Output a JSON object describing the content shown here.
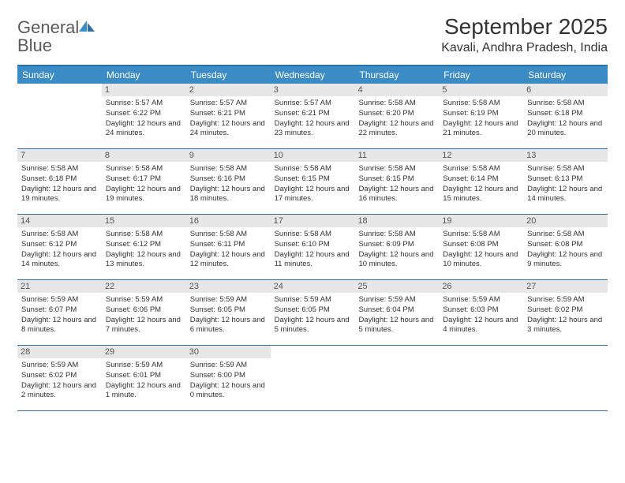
{
  "logo": {
    "general": "General",
    "blue": "Blue"
  },
  "title": "September 2025",
  "location": "Kavali, Andhra Pradesh, India",
  "colors": {
    "header_bg": "#3b8bc4",
    "header_text": "#ffffff",
    "border": "#2a6fa8",
    "daynum_bg": "#e7e7e7",
    "text": "#333333"
  },
  "daysOfWeek": [
    "Sunday",
    "Monday",
    "Tuesday",
    "Wednesday",
    "Thursday",
    "Friday",
    "Saturday"
  ],
  "weeks": [
    [
      null,
      {
        "n": "1",
        "sr": "5:57 AM",
        "ss": "6:22 PM",
        "dl": "12 hours and 24 minutes."
      },
      {
        "n": "2",
        "sr": "5:57 AM",
        "ss": "6:21 PM",
        "dl": "12 hours and 24 minutes."
      },
      {
        "n": "3",
        "sr": "5:57 AM",
        "ss": "6:21 PM",
        "dl": "12 hours and 23 minutes."
      },
      {
        "n": "4",
        "sr": "5:58 AM",
        "ss": "6:20 PM",
        "dl": "12 hours and 22 minutes."
      },
      {
        "n": "5",
        "sr": "5:58 AM",
        "ss": "6:19 PM",
        "dl": "12 hours and 21 minutes."
      },
      {
        "n": "6",
        "sr": "5:58 AM",
        "ss": "6:18 PM",
        "dl": "12 hours and 20 minutes."
      }
    ],
    [
      {
        "n": "7",
        "sr": "5:58 AM",
        "ss": "6:18 PM",
        "dl": "12 hours and 19 minutes."
      },
      {
        "n": "8",
        "sr": "5:58 AM",
        "ss": "6:17 PM",
        "dl": "12 hours and 19 minutes."
      },
      {
        "n": "9",
        "sr": "5:58 AM",
        "ss": "6:16 PM",
        "dl": "12 hours and 18 minutes."
      },
      {
        "n": "10",
        "sr": "5:58 AM",
        "ss": "6:15 PM",
        "dl": "12 hours and 17 minutes."
      },
      {
        "n": "11",
        "sr": "5:58 AM",
        "ss": "6:15 PM",
        "dl": "12 hours and 16 minutes."
      },
      {
        "n": "12",
        "sr": "5:58 AM",
        "ss": "6:14 PM",
        "dl": "12 hours and 15 minutes."
      },
      {
        "n": "13",
        "sr": "5:58 AM",
        "ss": "6:13 PM",
        "dl": "12 hours and 14 minutes."
      }
    ],
    [
      {
        "n": "14",
        "sr": "5:58 AM",
        "ss": "6:12 PM",
        "dl": "12 hours and 14 minutes."
      },
      {
        "n": "15",
        "sr": "5:58 AM",
        "ss": "6:12 PM",
        "dl": "12 hours and 13 minutes."
      },
      {
        "n": "16",
        "sr": "5:58 AM",
        "ss": "6:11 PM",
        "dl": "12 hours and 12 minutes."
      },
      {
        "n": "17",
        "sr": "5:58 AM",
        "ss": "6:10 PM",
        "dl": "12 hours and 11 minutes."
      },
      {
        "n": "18",
        "sr": "5:58 AM",
        "ss": "6:09 PM",
        "dl": "12 hours and 10 minutes."
      },
      {
        "n": "19",
        "sr": "5:58 AM",
        "ss": "6:08 PM",
        "dl": "12 hours and 10 minutes."
      },
      {
        "n": "20",
        "sr": "5:58 AM",
        "ss": "6:08 PM",
        "dl": "12 hours and 9 minutes."
      }
    ],
    [
      {
        "n": "21",
        "sr": "5:59 AM",
        "ss": "6:07 PM",
        "dl": "12 hours and 8 minutes."
      },
      {
        "n": "22",
        "sr": "5:59 AM",
        "ss": "6:06 PM",
        "dl": "12 hours and 7 minutes."
      },
      {
        "n": "23",
        "sr": "5:59 AM",
        "ss": "6:05 PM",
        "dl": "12 hours and 6 minutes."
      },
      {
        "n": "24",
        "sr": "5:59 AM",
        "ss": "6:05 PM",
        "dl": "12 hours and 5 minutes."
      },
      {
        "n": "25",
        "sr": "5:59 AM",
        "ss": "6:04 PM",
        "dl": "12 hours and 5 minutes."
      },
      {
        "n": "26",
        "sr": "5:59 AM",
        "ss": "6:03 PM",
        "dl": "12 hours and 4 minutes."
      },
      {
        "n": "27",
        "sr": "5:59 AM",
        "ss": "6:02 PM",
        "dl": "12 hours and 3 minutes."
      }
    ],
    [
      {
        "n": "28",
        "sr": "5:59 AM",
        "ss": "6:02 PM",
        "dl": "12 hours and 2 minutes."
      },
      {
        "n": "29",
        "sr": "5:59 AM",
        "ss": "6:01 PM",
        "dl": "12 hours and 1 minute."
      },
      {
        "n": "30",
        "sr": "5:59 AM",
        "ss": "6:00 PM",
        "dl": "12 hours and 0 minutes."
      },
      null,
      null,
      null,
      null
    ]
  ],
  "labels": {
    "sunrise": "Sunrise:",
    "sunset": "Sunset:",
    "daylight": "Daylight:"
  }
}
